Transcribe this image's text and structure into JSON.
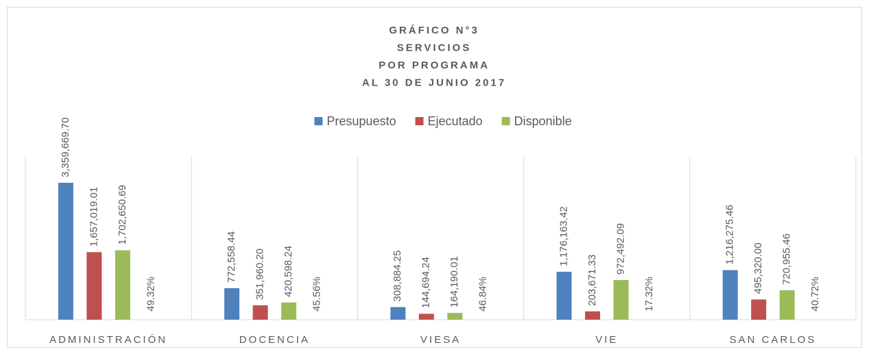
{
  "chart_data": {
    "type": "bar",
    "title": [
      "GRÁFICO N°3",
      "SERVICIOS",
      "POR PROGRAMA",
      "AL 30 DE JUNIO 2017"
    ],
    "categories": [
      "ADMINISTRACIÓN",
      "DOCENCIA",
      "VIESA",
      "VIE",
      "SAN CARLOS"
    ],
    "series": [
      {
        "name": "Presupuesto",
        "color": "#4f81bd",
        "values": [
          3359669.7,
          772558.44,
          308884.25,
          1176163.42,
          1216275.46
        ],
        "value_labels": [
          "3,359,669.70",
          "772,558.44",
          "308,884.25",
          "1,176,163.42",
          "1,216,275.46"
        ]
      },
      {
        "name": "Ejecutado",
        "color": "#c0504d",
        "values": [
          1657019.01,
          351960.2,
          144694.24,
          203671.33,
          495320.0
        ],
        "value_labels": [
          "1,657,019.01",
          "351,960.20",
          "144,694.24",
          "203,671.33",
          "495,320.00"
        ]
      },
      {
        "name": "Disponible",
        "color": "#9bbb59",
        "values": [
          1702650.69,
          420598.24,
          164190.01,
          972492.09,
          720955.46
        ],
        "value_labels": [
          "1,702,650.69",
          "420,598.24",
          "164,190.01",
          "972,492.09",
          "720,955.46"
        ]
      }
    ],
    "annotations": [
      "49.32%",
      "45.56%",
      "46.84%",
      "17.32%",
      "40.72%"
    ],
    "legend": "top"
  }
}
